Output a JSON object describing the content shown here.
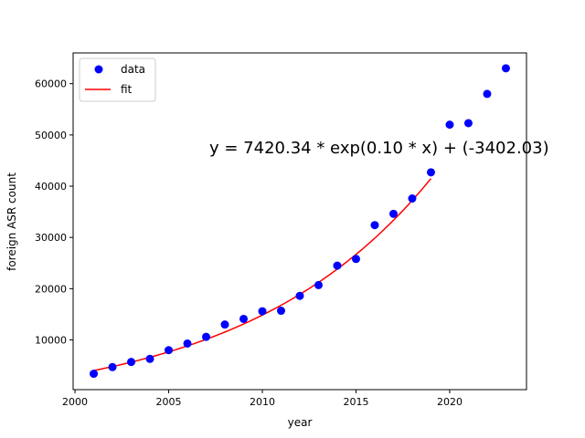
{
  "chart_data": {
    "type": "scatter",
    "xlabel": "year",
    "ylabel": "foreign ASR count",
    "xlim": [
      1999.9,
      2024.1
    ],
    "ylim": [
      300,
      66000
    ],
    "xticks": [
      2000,
      2005,
      2010,
      2015,
      2020
    ],
    "yticks": [
      10000,
      20000,
      30000,
      40000,
      50000,
      60000
    ],
    "xtick_labels": [
      "2000",
      "2005",
      "2010",
      "2015",
      "2020"
    ],
    "ytick_labels": [
      "10000",
      "20000",
      "30000",
      "40000",
      "50000",
      "60000"
    ],
    "annotation": "y = 7420.34 * exp(0.10 * x) + (-3402.03)",
    "legend": {
      "placement": "top-left",
      "entries": [
        "data",
        "fit"
      ]
    },
    "grid": false,
    "series": [
      {
        "name": "data",
        "kind": "points",
        "color": "#0000ff",
        "x": [
          2001,
          2002,
          2003,
          2004,
          2005,
          2006,
          2007,
          2008,
          2009,
          2010,
          2011,
          2012,
          2013,
          2014,
          2015,
          2016,
          2017,
          2018,
          2019,
          2020,
          2021,
          2022,
          2023
        ],
        "y": [
          3400,
          4700,
          5700,
          6300,
          8000,
          9300,
          10600,
          13000,
          14100,
          15600,
          15700,
          18600,
          20700,
          24500,
          25800,
          32400,
          34600,
          37600,
          42700,
          52000,
          52300,
          58000,
          63000
        ]
      },
      {
        "name": "fit",
        "kind": "line",
        "color": "#ff0000",
        "model": {
          "a": 7420.34,
          "b": 0.1,
          "c": -3402.03,
          "x0": 2001
        },
        "x_range": [
          2001,
          2019
        ]
      }
    ]
  }
}
